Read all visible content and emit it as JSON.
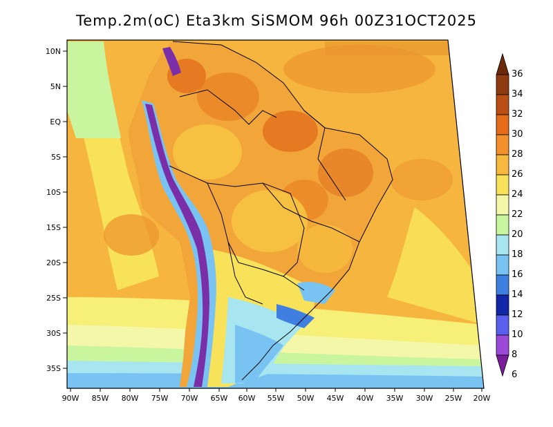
{
  "title": "Temp.2m(oC) Eta3km SiSMOM 96h 00Z31OCT2025",
  "map": {
    "variable": "2 m air temperature",
    "units": "oC",
    "lat_labels": [
      "10N",
      "5N",
      "EQ",
      "5S",
      "10S",
      "15S",
      "20S",
      "25S",
      "30S",
      "35S"
    ],
    "lon_labels": [
      "90W",
      "85W",
      "80W",
      "75W",
      "70W",
      "65W",
      "60W",
      "55W",
      "50W",
      "45W",
      "40W",
      "35W",
      "30W",
      "25W",
      "20W"
    ]
  },
  "colorbar": {
    "levels": [
      "36",
      "34",
      "32",
      "30",
      "28",
      "26",
      "24",
      "22",
      "20",
      "18",
      "16",
      "14",
      "12",
      "10",
      "8",
      "6"
    ],
    "colors": [
      "#6b2a0c",
      "#8f3b12",
      "#b94f14",
      "#e56c1a",
      "#f2902c",
      "#f6b93e",
      "#f8e25a",
      "#f4f7a8",
      "#c9f59e",
      "#a7e6f0",
      "#79c3f2",
      "#3f7fe0",
      "#1226a8",
      "#5a5ff0",
      "#9b49d6",
      "#7a1d9c"
    ]
  },
  "palette": {
    "ocean_warm": "#f6b53e",
    "ocean_hot": "#ee9a30",
    "land_hot": "#f0a032",
    "cool_green": "#c4f0a2",
    "light_yellow": "#f6f5a0",
    "sky": "#a6e3f2",
    "blue": "#6fb4ee",
    "andes_purple": "#7a2fa8"
  }
}
